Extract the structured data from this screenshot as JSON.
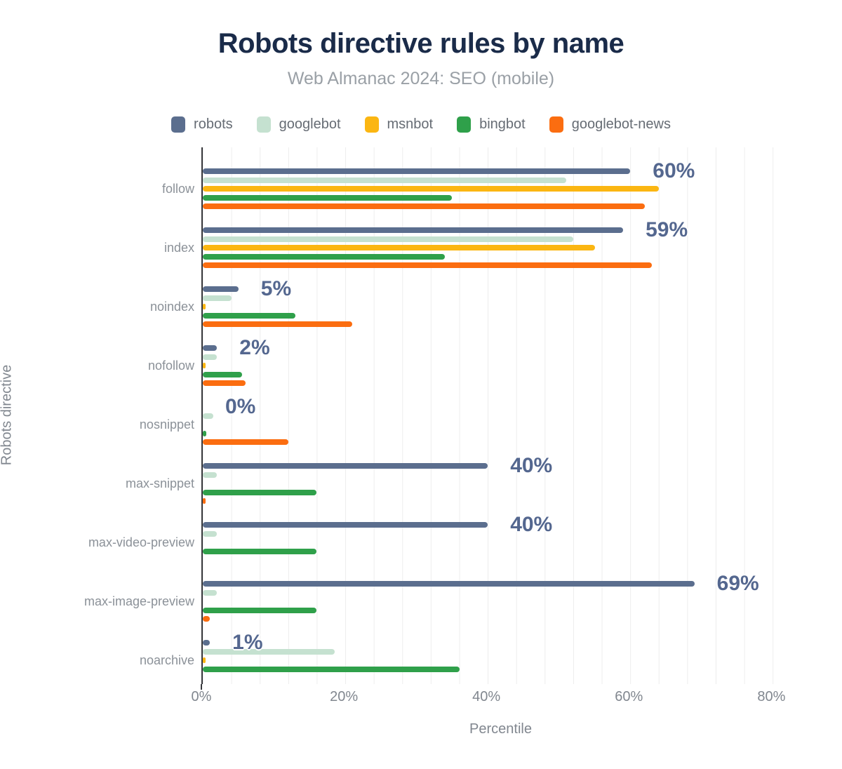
{
  "title": "Robots directive rules by name",
  "subtitle": "Web Almanac 2024: SEO (mobile)",
  "colors": {
    "title_text": "#1a2b49",
    "subtitle_text": "#9aa0a6",
    "axis_text": "#81878f",
    "category_text": "#8b9198",
    "legend_text": "#666c74",
    "data_label_text": "#54678f",
    "axis_line": "#37383c",
    "gridline": "#ededed",
    "background": "#ffffff"
  },
  "chart_data": {
    "type": "bar",
    "orientation": "horizontal",
    "title": "Robots directive rules by name",
    "subtitle": "Web Almanac 2024: SEO (mobile)",
    "xlabel": "Percentile",
    "ylabel": "Robots directive",
    "xlim": [
      0,
      84
    ],
    "x_ticks": [
      {
        "value": 0,
        "label": "0%"
      },
      {
        "value": 20,
        "label": "20%"
      },
      {
        "value": 40,
        "label": "40%"
      },
      {
        "value": 60,
        "label": "60%"
      },
      {
        "value": 80,
        "label": "80%"
      }
    ],
    "grid": "vertical, minor gridlines every 4%",
    "legend_position": "top",
    "categories": [
      "follow",
      "index",
      "noindex",
      "nofollow",
      "nosnippet",
      "max-snippet",
      "max-video-preview",
      "max-image-preview",
      "noarchive"
    ],
    "series": [
      {
        "name": "robots",
        "color": "#5b6e8e",
        "values": [
          60,
          59,
          5,
          2,
          0,
          40,
          40,
          69,
          1
        ]
      },
      {
        "name": "googlebot",
        "color": "#c5e1d0",
        "values": [
          51,
          52,
          4,
          2,
          1.5,
          2,
          2,
          2,
          18.5
        ]
      },
      {
        "name": "msnbot",
        "color": "#fbb612",
        "values": [
          64,
          55,
          0.4,
          0.4,
          0,
          0,
          0,
          0,
          0.4
        ]
      },
      {
        "name": "bingbot",
        "color": "#2fa04a",
        "values": [
          35,
          34,
          13,
          5.5,
          0.5,
          16,
          16,
          16,
          36
        ]
      },
      {
        "name": "googlebot-news",
        "color": "#fb6d10",
        "values": [
          62,
          63,
          21,
          6,
          12,
          0.3,
          0,
          1,
          0
        ]
      }
    ],
    "data_labels": [
      "60%",
      "59%",
      "5%",
      "2%",
      "0%",
      "40%",
      "40%",
      "69%",
      "1%"
    ]
  }
}
